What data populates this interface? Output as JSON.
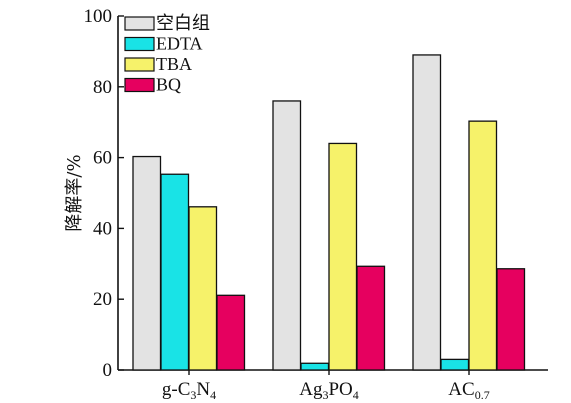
{
  "chart_data": {
    "type": "bar",
    "ylabel": "降解率/%",
    "ylim": [
      0,
      100
    ],
    "yticks": [
      0,
      20,
      40,
      60,
      80,
      100
    ],
    "categories": [
      {
        "base": "g-C",
        "sub1": "3",
        "mid": "N",
        "sub2": "4"
      },
      {
        "base": "Ag",
        "sub1": "3",
        "mid": "PO",
        "sub2": "4"
      },
      {
        "base": "AC",
        "sub1": "0.7",
        "mid": "",
        "sub2": ""
      }
    ],
    "series": [
      {
        "name": "空白组",
        "color": "#e3e3e3",
        "values": [
          60.3,
          76,
          89
        ]
      },
      {
        "name": "EDTA",
        "color": "#19e3e6",
        "values": [
          55.3,
          1.9,
          3
        ]
      },
      {
        "name": "TBA",
        "color": "#f6f26a",
        "values": [
          46.1,
          64,
          70.3
        ]
      },
      {
        "name": "BQ",
        "color": "#e6005f",
        "values": [
          21.1,
          29.3,
          28.6
        ]
      }
    ],
    "legend_position": "top-left",
    "grid": false
  }
}
